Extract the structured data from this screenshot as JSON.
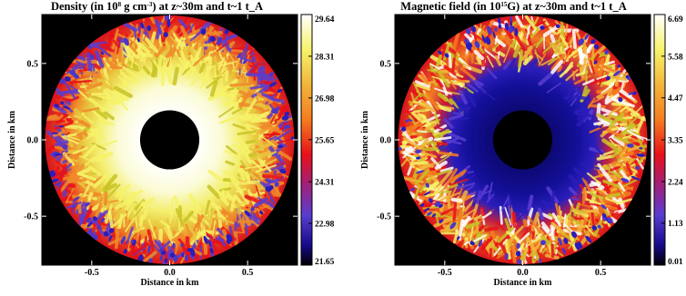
{
  "chart_data": [
    {
      "type": "heatmap",
      "title_main": "Density (in 10",
      "title_sup": "8",
      "title_rest": " g cm",
      "title_sup2": "-3",
      "title_end": ") at z~30m and t~1 t_A",
      "xlabel": "Distance in km",
      "ylabel": "Distance in km",
      "xlim": [
        -0.82,
        0.82
      ],
      "ylim": [
        -0.82,
        0.82
      ],
      "xticks": [
        -0.5,
        0.0,
        0.5
      ],
      "xtick_labels": [
        "-0.5",
        "0.0",
        "0.5"
      ],
      "yticks": [
        0.5,
        0.0,
        -0.5
      ],
      "ytick_labels": [
        "0.5",
        "0.0",
        "-0.5"
      ],
      "inner_radius_km": 0.19,
      "outer_radius_km": 0.8,
      "colorbar": {
        "min": 21.65,
        "max": 29.64,
        "ticks": [
          29.64,
          28.31,
          26.98,
          25.65,
          24.31,
          22.98,
          21.65
        ],
        "tick_labels": [
          "29.64",
          "28.31",
          "26.98",
          "25.65",
          "24.31",
          "22.98",
          "21.65"
        ]
      },
      "colors": [
        "#000000",
        "#1a0d9e",
        "#5a3dd1",
        "#e8101a",
        "#f57c1f",
        "#c9c327",
        "#f7f36a",
        "#ffffff"
      ]
    },
    {
      "type": "heatmap",
      "title_main": "Magnetic field (in 10",
      "title_sup": "15",
      "title_rest": "G) at z~30m and t~1 t_A",
      "title_sup2": "",
      "title_end": "",
      "xlabel": "Distance in km",
      "ylabel": "Distance in km",
      "xlim": [
        -0.82,
        0.82
      ],
      "ylim": [
        -0.82,
        0.82
      ],
      "xticks": [
        -0.5,
        0.0,
        0.5
      ],
      "xtick_labels": [
        "-0.5",
        "0.0",
        "0.5"
      ],
      "yticks": [
        0.5,
        0.0,
        -0.5
      ],
      "ytick_labels": [
        "0.5",
        "0.0",
        "-0.5"
      ],
      "inner_radius_km": 0.19,
      "outer_radius_km": 0.8,
      "colorbar": {
        "min": 0.01,
        "max": 6.69,
        "ticks": [
          6.69,
          5.58,
          4.47,
          3.35,
          2.24,
          1.13,
          0.01
        ],
        "tick_labels": [
          "6.69",
          "5.58",
          "4.47",
          "3.35",
          "2.24",
          "1.13",
          "0.01"
        ]
      },
      "colors": [
        "#000000",
        "#1a0d9e",
        "#5a3dd1",
        "#e8101a",
        "#f57c1f",
        "#c9c327",
        "#f7f36a",
        "#ffffff"
      ]
    }
  ]
}
